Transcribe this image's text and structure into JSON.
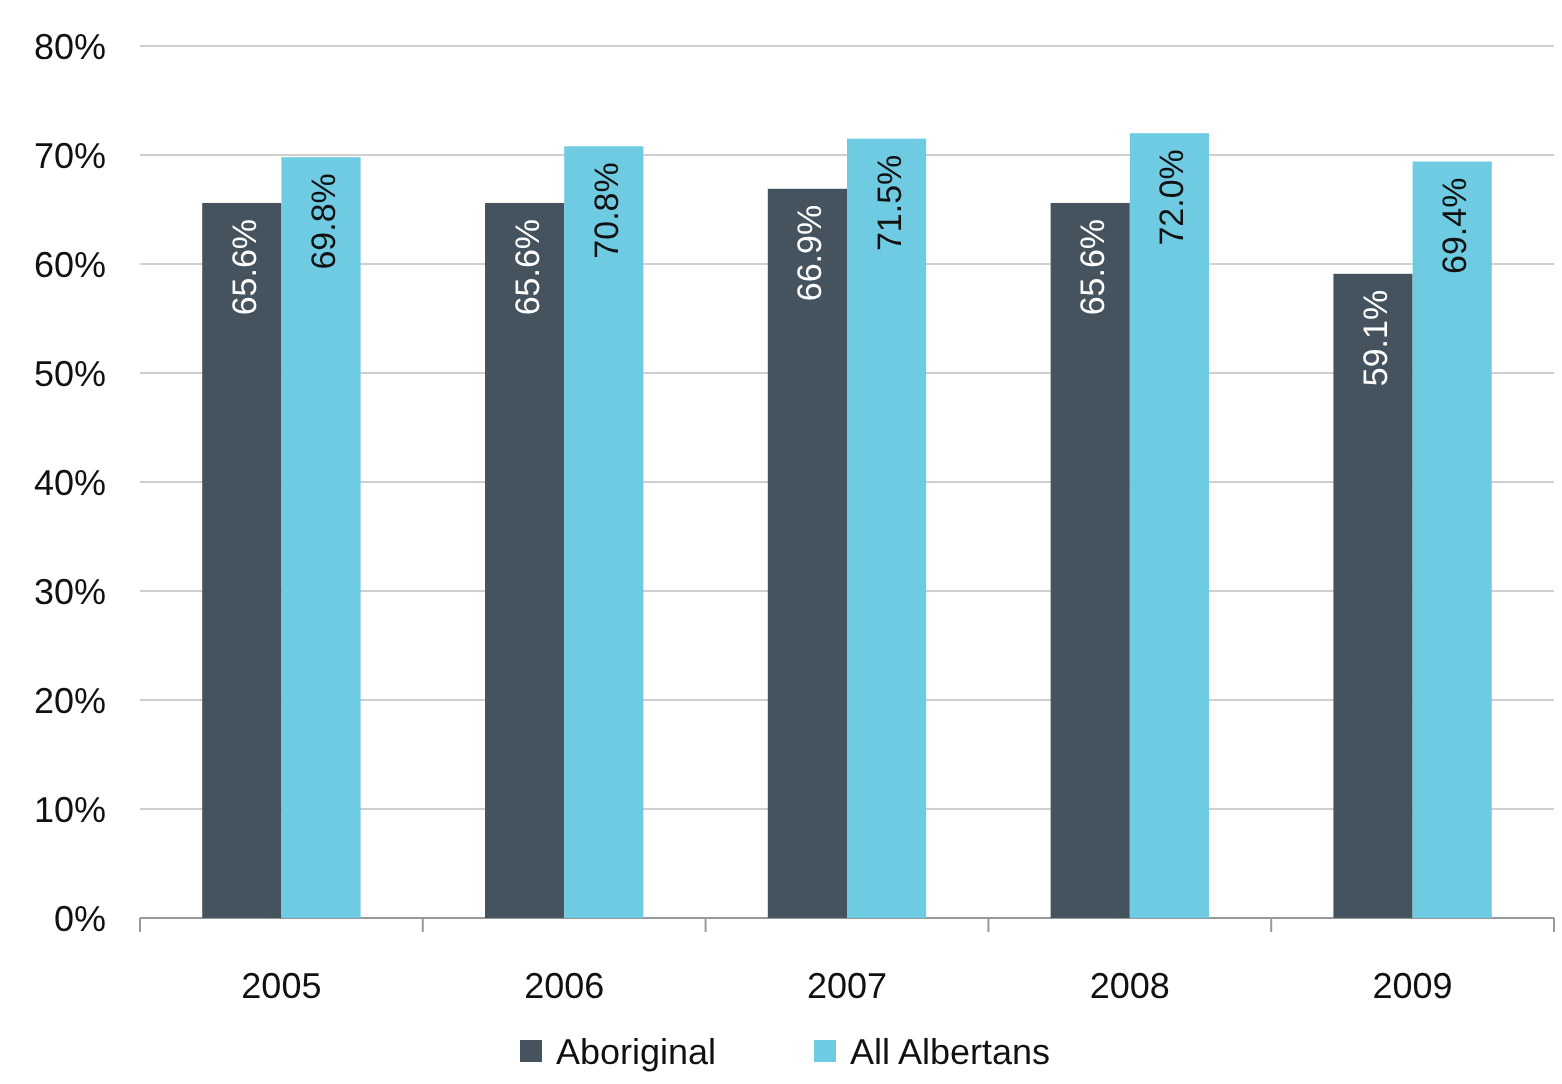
{
  "chart_data": {
    "type": "bar",
    "categories": [
      "2005",
      "2006",
      "2007",
      "2008",
      "2009"
    ],
    "series": [
      {
        "name": "Aboriginal",
        "color": "#44535e",
        "values": [
          65.6,
          65.6,
          66.9,
          65.6,
          59.1
        ]
      },
      {
        "name": "All Albertans",
        "color": "#6ecbe2",
        "values": [
          69.8,
          70.8,
          71.5,
          72.0,
          69.4
        ]
      }
    ],
    "ylim": [
      0,
      80
    ],
    "yticks": [
      {
        "value": 0,
        "label": "0%"
      },
      {
        "value": 10,
        "label": "10%"
      },
      {
        "value": 20,
        "label": "20%"
      },
      {
        "value": 30,
        "label": "30%"
      },
      {
        "value": 40,
        "label": "40%"
      },
      {
        "value": 50,
        "label": "50%"
      },
      {
        "value": 60,
        "label": "60%"
      },
      {
        "value": 70,
        "label": "70%"
      },
      {
        "value": 80,
        "label": "80%"
      }
    ],
    "value_labels": [
      [
        "65.6%",
        "65.6%",
        "66.9%",
        "65.6%",
        "59.1%"
      ],
      [
        "69.8%",
        "70.8%",
        "71.5%",
        "72.0%",
        "69.4%"
      ]
    ],
    "grid": "y",
    "legend": "bottom"
  }
}
